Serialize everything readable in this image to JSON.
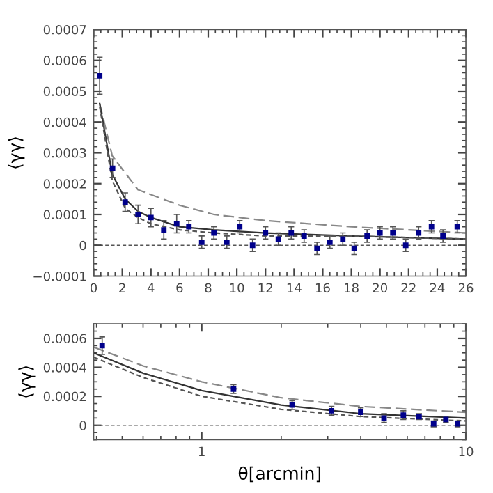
{
  "chart_data": [
    {
      "type": "scatter",
      "ylabel": "⟨γγ⟩",
      "xlim": [
        0,
        26
      ],
      "ylim": [
        -0.0001,
        0.0007
      ],
      "xticks": [
        0,
        2,
        4,
        6,
        8,
        10,
        12,
        14,
        16,
        18,
        20,
        22,
        24,
        26
      ],
      "yticks": [
        {
          "value": -0.0001,
          "label": "−0.0001"
        },
        0,
        0.0001,
        0.0002,
        0.0003,
        0.0004,
        0.0005,
        0.0006,
        0.0007
      ],
      "grid": false,
      "ref_lines": [
        {
          "axis": "y",
          "value": 0,
          "line_style": "dotted",
          "color": "#555555"
        }
      ],
      "series": [
        {
          "color": "#00008b",
          "marker": "square",
          "x": [
            0.42,
            1.32,
            2.2,
            3.1,
            4.0,
            4.9,
            5.8,
            6.65,
            7.55,
            8.4,
            9.3,
            10.2,
            11.1,
            12.0,
            12.9,
            13.8,
            14.7,
            15.6,
            16.5,
            17.4,
            18.2,
            19.1,
            20.0,
            20.9,
            21.8,
            22.7,
            23.6,
            24.4,
            25.4
          ],
          "values": [
            0.00055,
            0.00025,
            0.00014,
            0.0001,
            9e-05,
            5e-05,
            7e-05,
            6e-05,
            1e-05,
            4e-05,
            1e-05,
            6e-05,
            0.0,
            4e-05,
            2e-05,
            4e-05,
            3e-05,
            -1e-05,
            1e-05,
            2e-05,
            -1e-05,
            3e-05,
            4e-05,
            4e-05,
            0.0,
            4e-05,
            6e-05,
            3e-05,
            6e-05
          ],
          "errors": [
            6e-05,
            3e-05,
            3e-05,
            3e-05,
            3e-05,
            3e-05,
            3e-05,
            2e-05,
            2e-05,
            2e-05,
            2e-05,
            2e-05,
            2e-05,
            2e-05,
            2e-05,
            2e-05,
            2e-05,
            2e-05,
            2e-05,
            2e-05,
            2e-05,
            2e-05,
            2e-05,
            2e-05,
            2e-05,
            2e-05,
            2e-05,
            2e-05,
            2e-05
          ]
        },
        {
          "type": "line",
          "color": "#888888",
          "line_style": "dashed",
          "x": [
            0.42,
            1.3,
            3.1,
            6,
            8.4,
            12,
            18,
            22,
            26
          ],
          "values": [
            0.00046,
            0.00029,
            0.00018,
            0.00013,
            0.0001,
            8e-05,
            6e-05,
            5e-05,
            4e-05
          ]
        },
        {
          "type": "line",
          "color": "#333333",
          "line_style": "solid",
          "x": [
            0.42,
            1.3,
            2.2,
            3.1,
            4,
            6,
            8.4,
            12,
            18,
            26
          ],
          "values": [
            0.00046,
            0.00023,
            0.00015,
            0.00011,
            9e-05,
            6e-05,
            5e-05,
            4e-05,
            3e-05,
            2e-05
          ]
        },
        {
          "type": "line",
          "color": "#555555",
          "line_style": "dotted",
          "x": [
            0.42,
            1.3,
            2.2,
            3.1,
            4,
            6,
            8.4,
            12,
            18,
            26
          ],
          "values": [
            0.00045,
            0.00021,
            0.00012,
            9e-05,
            7e-05,
            5e-05,
            4e-05,
            3e-05,
            3e-05,
            2e-05
          ]
        }
      ]
    },
    {
      "type": "scatter",
      "ylabel": "⟨γγ⟩",
      "xlabel": "θ[arcmin]",
      "log": "x",
      "xlim": [
        0.39,
        10
      ],
      "ylim": [
        -0.0001,
        0.0007
      ],
      "xticks": [
        1,
        10
      ],
      "yticks": [
        0,
        0.0002,
        0.0004,
        0.0006
      ],
      "grid": false,
      "ref_lines": [
        {
          "axis": "y",
          "value": 0,
          "line_style": "dotted",
          "color": "#555555"
        }
      ],
      "series": [
        {
          "color": "#00008b",
          "marker": "square",
          "x": [
            0.42,
            1.32,
            2.2,
            3.1,
            4.0,
            4.9,
            5.8,
            6.65,
            7.55,
            8.4,
            9.3
          ],
          "values": [
            0.00055,
            0.00025,
            0.00014,
            0.0001,
            9e-05,
            5e-05,
            7e-05,
            6e-05,
            1e-05,
            4e-05,
            1e-05
          ],
          "errors": [
            6e-05,
            3e-05,
            3e-05,
            3e-05,
            3e-05,
            3e-05,
            3e-05,
            2e-05,
            2e-05,
            2e-05,
            2e-05
          ]
        },
        {
          "type": "line",
          "color": "#888888",
          "line_style": "dashed",
          "x": [
            0.39,
            0.6,
            1,
            2,
            4,
            10
          ],
          "values": [
            0.00054,
            0.00041,
            0.0003,
            0.00019,
            0.00013,
            9e-05
          ]
        },
        {
          "type": "line",
          "color": "#333333",
          "line_style": "solid",
          "x": [
            0.39,
            0.6,
            1,
            2,
            4,
            10
          ],
          "values": [
            0.0005,
            0.00036,
            0.00024,
            0.00014,
            8e-05,
            5e-05
          ]
        },
        {
          "type": "line",
          "color": "#555555",
          "line_style": "dotted",
          "x": [
            0.39,
            0.6,
            1,
            2,
            4,
            10
          ],
          "values": [
            0.00047,
            0.00033,
            0.0002,
            0.00011,
            6e-05,
            3e-05
          ]
        }
      ]
    }
  ]
}
